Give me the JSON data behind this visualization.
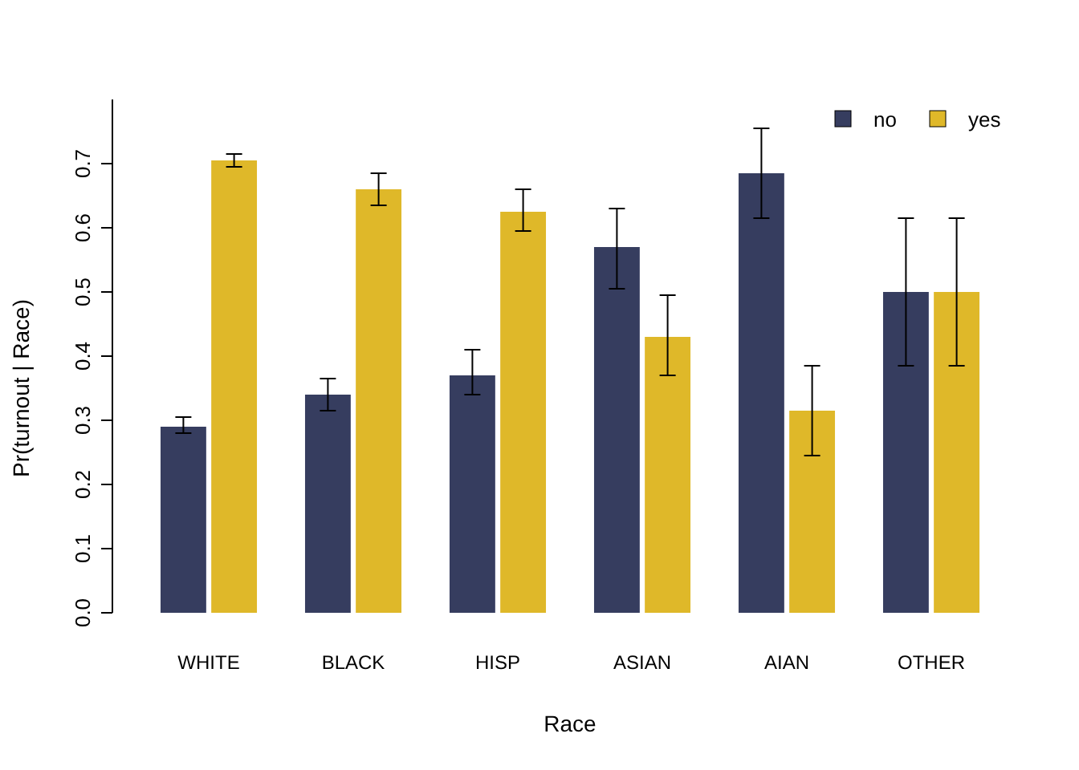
{
  "chart_data": {
    "type": "bar",
    "xlabel": "Race",
    "ylabel": "Pr(turnout | Race)",
    "categories": [
      "WHITE",
      "BLACK",
      "HISP",
      "ASIAN",
      "AIAN",
      "OTHER"
    ],
    "series": [
      {
        "name": "no",
        "color": "#363d5f",
        "values": [
          0.29,
          0.34,
          0.37,
          0.57,
          0.685,
          0.5
        ],
        "errors": [
          [
            0.28,
            0.305
          ],
          [
            0.315,
            0.365
          ],
          [
            0.34,
            0.41
          ],
          [
            0.505,
            0.63
          ],
          [
            0.615,
            0.755
          ],
          [
            0.385,
            0.615
          ]
        ]
      },
      {
        "name": "yes",
        "color": "#dfb829",
        "values": [
          0.705,
          0.66,
          0.625,
          0.43,
          0.315,
          0.5
        ],
        "errors": [
          [
            0.695,
            0.715
          ],
          [
            0.635,
            0.685
          ],
          [
            0.595,
            0.66
          ],
          [
            0.37,
            0.495
          ],
          [
            0.245,
            0.385
          ],
          [
            0.385,
            0.615
          ]
        ]
      }
    ],
    "ylim": [
      0,
      0.8
    ],
    "yticks": [
      {
        "value": 0,
        "label": "0.0"
      },
      0.1,
      0.2,
      0.3,
      0.4,
      0.5,
      0.6,
      0.7
    ],
    "grid": false,
    "legend": "top right"
  }
}
